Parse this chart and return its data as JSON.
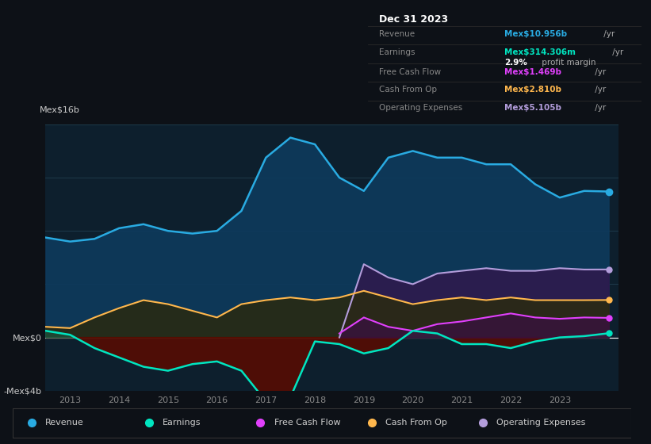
{
  "bg_color": "#0d1117",
  "plot_bg_color": "#0d1f2d",
  "grid_color": "#1e3a4a",
  "title_box": {
    "date": "Dec 31 2023",
    "rows": [
      {
        "label": "Revenue",
        "value": "Mex$10.956b",
        "value_color": "#29abe2",
        "suffix": " /yr"
      },
      {
        "label": "Earnings",
        "value": "Mex$314.306m",
        "value_color": "#00e5c0",
        "suffix": " /yr"
      },
      {
        "label": "",
        "value": "2.9%",
        "value_color": "#ffffff",
        "suffix": " profit margin"
      },
      {
        "label": "Free Cash Flow",
        "value": "Mex$1.469b",
        "value_color": "#e040fb",
        "suffix": " /yr"
      },
      {
        "label": "Cash From Op",
        "value": "Mex$2.810b",
        "value_color": "#ffb74d",
        "suffix": " /yr"
      },
      {
        "label": "Operating Expenses",
        "value": "Mex$5.105b",
        "value_color": "#b39ddb",
        "suffix": " /yr"
      }
    ]
  },
  "ylim": [
    -4000000000,
    16000000000
  ],
  "yticks": [
    -4000000000,
    0,
    4000000000,
    8000000000,
    12000000000,
    16000000000
  ],
  "ytick_labels": [
    "-Mex$4b",
    "Mex$0",
    "",
    "",
    "",
    "Mex$16b"
  ],
  "xlim": [
    2012.5,
    2024.2
  ],
  "xticks": [
    2013,
    2014,
    2015,
    2016,
    2017,
    2018,
    2019,
    2020,
    2021,
    2022,
    2023
  ],
  "revenue_color": "#29abe2",
  "earnings_color": "#00e5c0",
  "fcf_color": "#e040fb",
  "cashop_color": "#ffb74d",
  "opex_color": "#b39ddb",
  "revenue_data": {
    "x": [
      2012.5,
      2013.0,
      2013.5,
      2014.0,
      2014.5,
      2015.0,
      2015.5,
      2016.0,
      2016.5,
      2017.0,
      2017.5,
      2018.0,
      2018.5,
      2019.0,
      2019.5,
      2020.0,
      2020.5,
      2021.0,
      2021.5,
      2022.0,
      2022.5,
      2023.0,
      2023.5,
      2024.0
    ],
    "y": [
      7500000000,
      7200000000,
      7400000000,
      8200000000,
      8500000000,
      8000000000,
      7800000000,
      8000000000,
      9500000000,
      13500000000,
      15000000000,
      14500000000,
      12000000000,
      11000000000,
      13500000000,
      14000000000,
      13500000000,
      13500000000,
      13000000000,
      13000000000,
      11500000000,
      10500000000,
      11000000000,
      10956000000
    ]
  },
  "earnings_data": {
    "x": [
      2012.5,
      2013.0,
      2013.5,
      2014.0,
      2014.5,
      2015.0,
      2015.5,
      2016.0,
      2016.5,
      2017.0,
      2017.5,
      2018.0,
      2018.5,
      2019.0,
      2019.5,
      2020.0,
      2020.5,
      2021.0,
      2021.5,
      2022.0,
      2022.5,
      2023.0,
      2023.5,
      2024.0
    ],
    "y": [
      500000000,
      200000000,
      -800000000,
      -1500000000,
      -2200000000,
      -2500000000,
      -2000000000,
      -1800000000,
      -2500000000,
      -4800000000,
      -4500000000,
      -300000000,
      -500000000,
      -1200000000,
      -800000000,
      500000000,
      300000000,
      -500000000,
      -500000000,
      -800000000,
      -300000000,
      0,
      100000000,
      314000000
    ]
  },
  "fcf_data": {
    "x": [
      2018.5,
      2019.0,
      2019.5,
      2020.0,
      2020.5,
      2021.0,
      2021.5,
      2022.0,
      2022.5,
      2023.0,
      2023.5,
      2024.0
    ],
    "y": [
      300000000,
      1500000000,
      800000000,
      500000000,
      1000000000,
      1200000000,
      1500000000,
      1800000000,
      1500000000,
      1400000000,
      1500000000,
      1469000000
    ]
  },
  "cashop_data": {
    "x": [
      2012.5,
      2013.0,
      2013.5,
      2014.0,
      2014.5,
      2015.0,
      2015.5,
      2016.0,
      2016.5,
      2017.0,
      2017.5,
      2018.0,
      2018.5,
      2019.0,
      2019.5,
      2020.0,
      2020.5,
      2021.0,
      2021.5,
      2022.0,
      2022.5,
      2023.0,
      2023.5,
      2024.0
    ],
    "y": [
      800000000,
      700000000,
      1500000000,
      2200000000,
      2800000000,
      2500000000,
      2000000000,
      1500000000,
      2500000000,
      2800000000,
      3000000000,
      2800000000,
      3000000000,
      3500000000,
      3000000000,
      2500000000,
      2800000000,
      3000000000,
      2800000000,
      3000000000,
      2800000000,
      2800000000,
      2800000000,
      2810000000
    ]
  },
  "opex_data": {
    "x": [
      2018.5,
      2019.0,
      2019.5,
      2020.0,
      2020.5,
      2021.0,
      2021.5,
      2022.0,
      2022.5,
      2023.0,
      2023.5,
      2024.0
    ],
    "y": [
      0,
      5500000000,
      4500000000,
      4000000000,
      4800000000,
      5000000000,
      5200000000,
      5000000000,
      5000000000,
      5200000000,
      5100000000,
      5105000000
    ]
  },
  "legend_items": [
    {
      "label": "Revenue",
      "color": "#29abe2"
    },
    {
      "label": "Earnings",
      "color": "#00e5c0"
    },
    {
      "label": "Free Cash Flow",
      "color": "#e040fb"
    },
    {
      "label": "Cash From Op",
      "color": "#ffb74d"
    },
    {
      "label": "Operating Expenses",
      "color": "#b39ddb"
    }
  ]
}
